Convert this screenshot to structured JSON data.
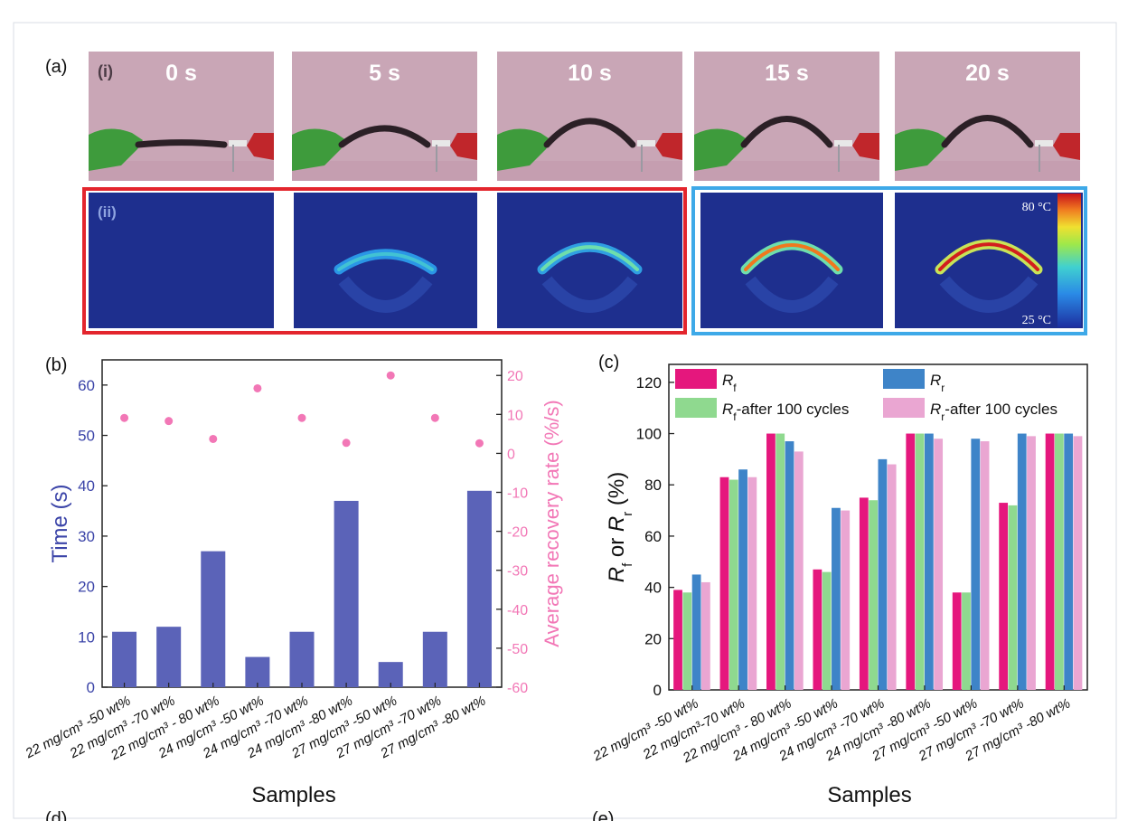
{
  "panel_labels": {
    "a": "(a)",
    "i": "(i)",
    "ii": "(ii)",
    "b": "(b)",
    "c": "(c)",
    "d": "(d)",
    "e": "(e)"
  },
  "photos": [
    {
      "time": "0 s",
      "arc": 0.05
    },
    {
      "time": "5 s",
      "arc": 0.38
    },
    {
      "time": "10 s",
      "arc": 0.55
    },
    {
      "time": "15 s",
      "arc": 0.6
    },
    {
      "time": "20 s",
      "arc": 0.62
    }
  ],
  "thermal_frames": [
    {
      "intensity": 0.0,
      "arc": 0.05
    },
    {
      "intensity": 0.25,
      "arc": 0.38
    },
    {
      "intensity": 0.45,
      "arc": 0.55
    },
    {
      "intensity": 0.85,
      "arc": 0.6
    },
    {
      "intensity": 1.0,
      "arc": 0.62
    }
  ],
  "colorbar": {
    "max_label": "80 °C",
    "min_label": "25 °C"
  },
  "colors": {
    "photo_bg": "#c9a6b6",
    "thermal_bg": "#1e2f8e",
    "red_box": "#e3252d",
    "blue_box": "#3ea9e8",
    "bar_b": "#5b63b8",
    "dots_b": "#f277b6",
    "left_axis_b": "#3b44a8",
    "right_axis_b": "#f277b6",
    "Rf": "#e5177d",
    "Rr": "#3e84c8",
    "Rf100": "#8fd98f",
    "Rr100": "#eaa6d2"
  },
  "chart_data": [
    {
      "type": "bar",
      "title": "(b)",
      "xlabel": "Samples",
      "ylabel": "Time (s)",
      "y2label": "Average recovery rate (%/s)",
      "categories": [
        "22 mg/cm³ -50 wt%",
        "22 mg/cm³ -70 wt%",
        "22 mg/cm³ - 80 wt%",
        "24 mg/cm³ -50 wt%",
        "24 mg/cm³ -70 wt%",
        "24 mg/cm³ -80 wt%",
        "27 mg/cm³ -50 wt%",
        "27 mg/cm³ -70 wt%",
        "27 mg/cm³ -80 wt%"
      ],
      "ylim": [
        0,
        65
      ],
      "y2lim": [
        -60,
        24
      ],
      "yticks": [
        0,
        10,
        20,
        30,
        40,
        50,
        60
      ],
      "y2ticks": [
        -60,
        -50,
        -40,
        -30,
        -20,
        -10,
        0,
        10,
        20
      ],
      "series": [
        {
          "name": "Time",
          "kind": "bar",
          "axis": "left",
          "values": [
            11,
            12,
            27,
            6,
            11,
            37,
            5,
            11,
            39
          ]
        },
        {
          "name": "Average recovery rate",
          "kind": "scatter",
          "axis": "right",
          "values": [
            9.1,
            8.3,
            3.7,
            16.7,
            9.1,
            2.7,
            20.0,
            9.1,
            2.6
          ]
        }
      ]
    },
    {
      "type": "bar",
      "title": "(c)",
      "xlabel": "Samples",
      "ylabel": "Rf or Rr (%)",
      "categories": [
        "22 mg/cm³ -50 wt%",
        "22 mg/cm³-70 wt%",
        "22 mg/cm³ - 80 wt%",
        "24 mg/cm³ -50 wt%",
        "24 mg/cm³ -70 wt%",
        "24 mg/cm³ -80 wt%",
        "27 mg/cm³ -50 wt%",
        "27 mg/cm³ -70 wt%",
        "27 mg/cm³ -80 wt%"
      ],
      "ylim": [
        0,
        127
      ],
      "yticks": [
        0,
        20,
        40,
        60,
        80,
        100,
        120
      ],
      "legend": "top",
      "series": [
        {
          "name": "Rf",
          "main": "R",
          "sub": "f",
          "suffix": "",
          "values": [
            39,
            83,
            100,
            47,
            75,
            100,
            38,
            73,
            100
          ]
        },
        {
          "name": "Rf-after 100 cycles",
          "main": "R",
          "sub": "f",
          "suffix": "-after 100 cycles",
          "values": [
            38,
            82,
            100,
            46,
            74,
            100,
            38,
            72,
            100
          ]
        },
        {
          "name": "Rr",
          "main": "R",
          "sub": "r",
          "suffix": "",
          "values": [
            45,
            86,
            97,
            71,
            90,
            100,
            98,
            100,
            100
          ]
        },
        {
          "name": "Rr-after 100 cycles",
          "main": "R",
          "sub": "r",
          "suffix": "-after 100 cycles",
          "values": [
            42,
            83,
            93,
            70,
            88,
            98,
            97,
            99,
            99
          ]
        }
      ]
    }
  ]
}
